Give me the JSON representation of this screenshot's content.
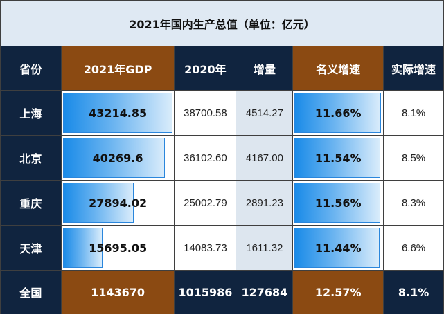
{
  "title": "2021年国内生产总值（单位：亿元）",
  "headers": [
    "省份",
    "2021年GDP",
    "2020年",
    "增量",
    "名义增速",
    "实际增速"
  ],
  "rows": [
    {
      "province": "上海",
      "gdp2021": "43214.85",
      "gdp2020": "38700.58",
      "increase": "4514.27",
      "nominal": "11.66%",
      "real": "8.1%"
    },
    {
      "province": "北京",
      "gdp2021": "40269.6",
      "gdp2020": "36102.60",
      "increase": "4167.00",
      "nominal": "11.54%",
      "real": "8.5%"
    },
    {
      "province": "重庆",
      "gdp2021": "27894.02",
      "gdp2020": "25002.79",
      "increase": "2891.23",
      "nominal": "11.56%",
      "real": "8.3%"
    },
    {
      "province": "天津",
      "gdp2021": "15695.05",
      "gdp2020": "14083.73",
      "increase": "1611.32",
      "nominal": "11.44%",
      "real": "6.6%"
    }
  ],
  "total": {
    "province": "全国",
    "gdp2021": "1143670",
    "gdp2020": "1015986",
    "increase": "127684",
    "nominal": "12.57%",
    "real": "8.1%"
  },
  "colors": {
    "navy": "#10243f",
    "brown": "#8b4a12",
    "bar": "#1a8be8",
    "title_bg": "#dfe9f3"
  },
  "chart_data": {
    "type": "table",
    "title": "2021年国内生产总值（单位：亿元）",
    "columns": [
      "省份",
      "2021年GDP",
      "2020年",
      "增量",
      "名义增速",
      "实际增速"
    ],
    "data_bars": [
      {
        "column": "2021年GDP",
        "categories": [
          "上海",
          "北京",
          "重庆",
          "天津"
        ],
        "values": [
          43214.85,
          40269.6,
          27894.02,
          15695.05
        ]
      },
      {
        "column": "名义增速",
        "categories": [
          "上海",
          "北京",
          "重庆",
          "天津"
        ],
        "values": [
          11.66,
          11.54,
          11.56,
          11.44
        ]
      }
    ]
  }
}
